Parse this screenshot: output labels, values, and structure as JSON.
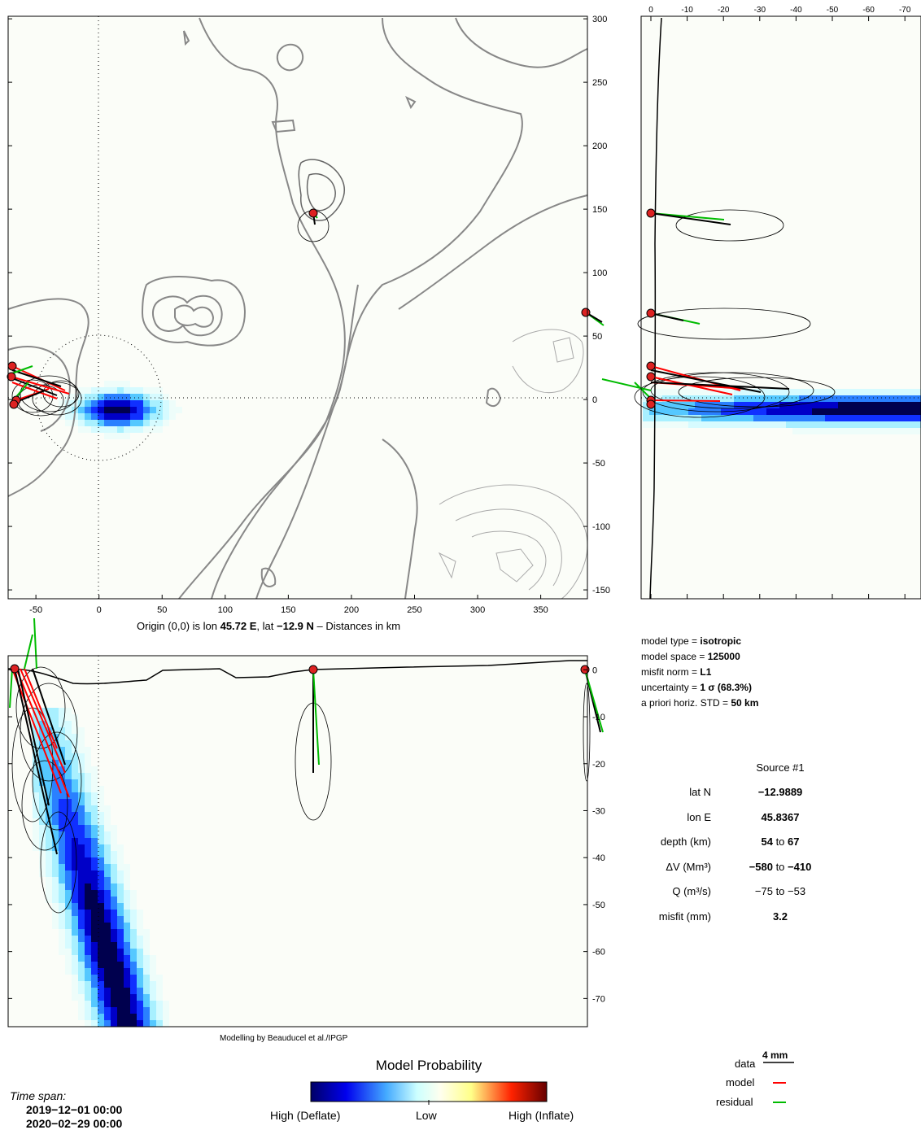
{
  "map_caption": {
    "prefix": "Origin (0,0) is lon ",
    "lon": "45.72 E",
    "mid": ", lat ",
    "lat": "−12.9 N",
    "suffix": " – Distances in km"
  },
  "credit": "Modelling by Beauducel et al./IPGP",
  "model_params": [
    {
      "label": "model type = ",
      "value": "isotropic"
    },
    {
      "label": "model space = ",
      "value": "125000"
    },
    {
      "label": "misfit norm = ",
      "value": "L1"
    },
    {
      "label": "uncertainty = ",
      "value": "1 σ (68.3%)"
    },
    {
      "label": "a priori horiz. STD = ",
      "value": "50 km"
    }
  ],
  "source_table": {
    "header": "Source #1",
    "rows": [
      {
        "label": "lat N",
        "value": "−12.9889"
      },
      {
        "label": "lon E",
        "value": "45.8367"
      },
      {
        "label": "depth (km)",
        "v1": "54",
        "to": " to ",
        "v2": "67"
      },
      {
        "label": "ΔV (Mm³)",
        "v1": "−580",
        "to": " to ",
        "v2": "−410"
      },
      {
        "label": "Q (m³/s)",
        "v1": "−75",
        "to": " to ",
        "v2": "−53"
      },
      {
        "label": "misfit (mm)",
        "value": "3.2"
      }
    ]
  },
  "legend": {
    "scale": "4 mm",
    "data": "data",
    "model": "model",
    "residual": "residual",
    "model_color": "#ff0000",
    "residual_color": "#00bb00"
  },
  "colorbar": {
    "title": "Model Probability",
    "left": "High (Deflate)",
    "mid": "Low",
    "right": "High (Inflate)"
  },
  "timespan": {
    "title": "Time span:",
    "start": "2019−12−01 00:00",
    "end": "2020−02−29 00:00"
  },
  "chart_data": [
    {
      "type": "heatmap",
      "view": "map",
      "xlabel": "Origin (0,0) is lon 45.72 E, lat −12.9 N – Distances in km",
      "xlim": [
        -72,
        387
      ],
      "ylim": [
        -157,
        302
      ],
      "xticks": [
        -50,
        0,
        50,
        100,
        150,
        200,
        250,
        300,
        350
      ],
      "yticks": [
        -150,
        -100,
        -50,
        0,
        50,
        100,
        150,
        200,
        250,
        300
      ],
      "grid": false,
      "source": {
        "x": 10,
        "y": -10
      },
      "prior_circle_radius": 50,
      "stations": [
        {
          "x": -68,
          "y": 25
        },
        {
          "x": -68,
          "y": 15
        },
        {
          "x": -65,
          "y": 5
        },
        {
          "x": -66,
          "y": -5
        },
        {
          "x": 170,
          "y": 146
        },
        {
          "x": 385,
          "y": 68
        }
      ]
    },
    {
      "type": "heatmap",
      "view": "east-west section",
      "xlabel": "",
      "xlim": [
        -1,
        -76
      ],
      "ylim": [
        -157,
        302
      ],
      "xticks": [
        0,
        -10,
        -20,
        -30,
        -40,
        -50,
        -60,
        -70
      ],
      "yticks": [
        -150,
        -100,
        -50,
        0,
        50,
        100,
        150,
        200,
        250,
        300
      ]
    },
    {
      "type": "heatmap",
      "view": "north-south section",
      "xlabel": "",
      "xlim": [
        -72,
        387
      ],
      "ylim": [
        -76,
        3
      ],
      "yticks": [
        0,
        -10,
        -20,
        -30,
        -40,
        -50,
        -60,
        -70
      ]
    }
  ]
}
